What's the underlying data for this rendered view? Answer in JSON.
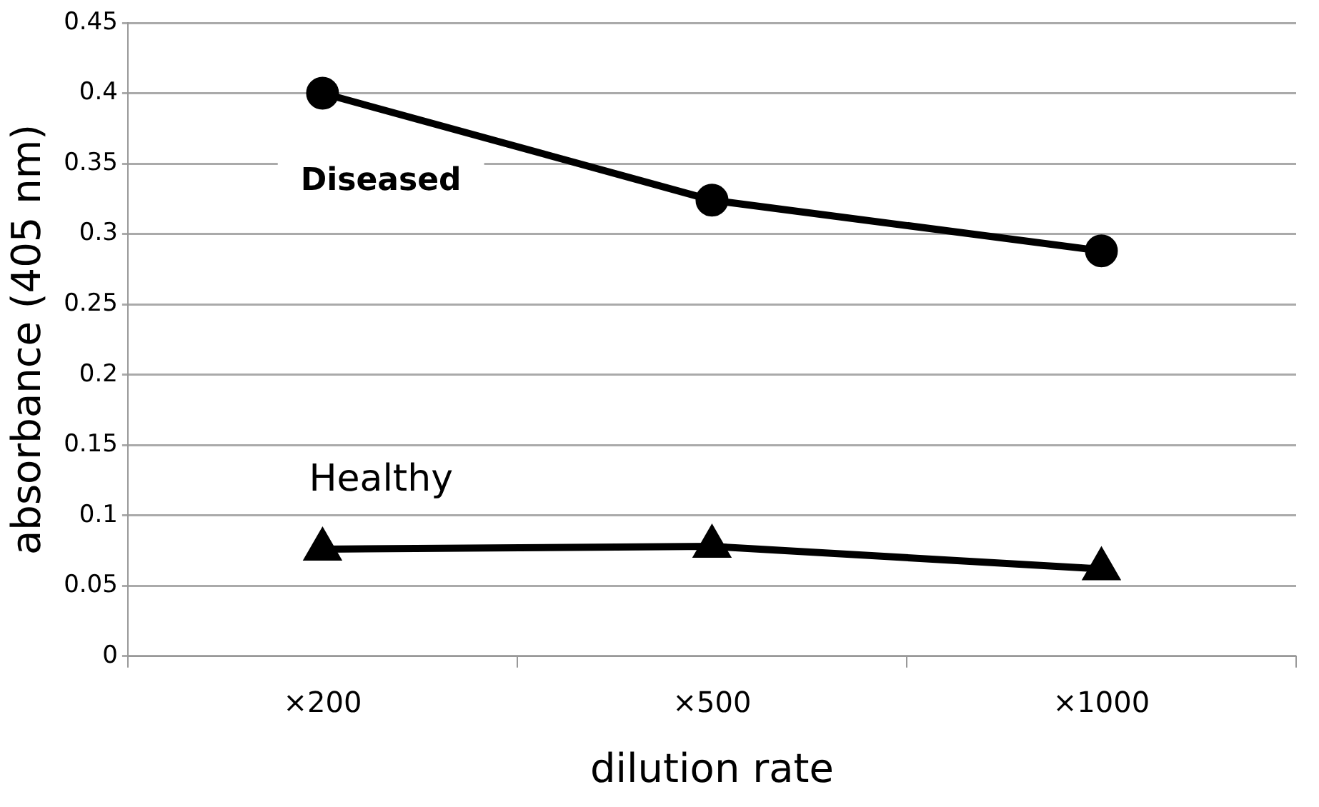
{
  "chart_data": {
    "type": "line",
    "xlabel": "dilution rate",
    "ylabel": "absorbance (405 nm)",
    "categories": [
      "×200",
      "×500",
      "×1000"
    ],
    "series": [
      {
        "name": "Diseased",
        "color": "#000000",
        "marker": "circle",
        "values": [
          0.4,
          0.324,
          0.288
        ]
      },
      {
        "name": "Healthy",
        "color": "#000000",
        "marker": "triangle",
        "values": [
          0.076,
          0.078,
          0.062
        ]
      }
    ],
    "ylim": [
      0,
      0.45
    ],
    "yticks": [
      0,
      0.05,
      0.1,
      0.15,
      0.2,
      0.25,
      0.3,
      0.35,
      0.4,
      0.45
    ],
    "grid": "y",
    "legend": false,
    "line_style": "solid"
  }
}
